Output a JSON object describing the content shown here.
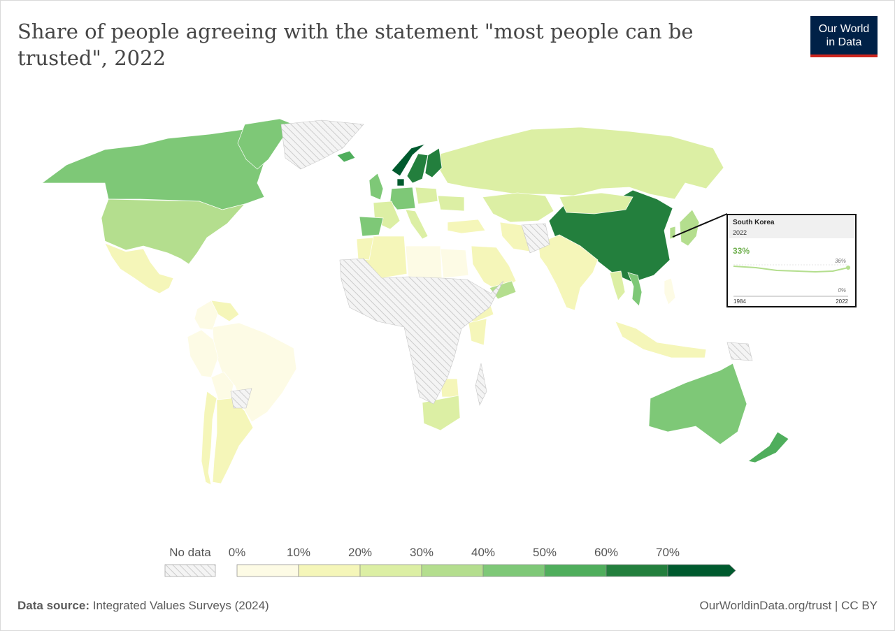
{
  "title": "Share of people agreeing with the statement \"most people can be trusted\", 2022",
  "logo": {
    "line1": "Our World",
    "line2": "in Data"
  },
  "legend": {
    "no_data_label": "No data",
    "ticks": [
      "0%",
      "10%",
      "20%",
      "30%",
      "40%",
      "50%",
      "60%",
      "70%"
    ],
    "colors": [
      "#fdfbe5",
      "#f5f6b9",
      "#dcefa4",
      "#b4de8e",
      "#7ec877",
      "#4fae5c",
      "#237f3d",
      "#005a2e"
    ],
    "no_data_color": "#dddddd"
  },
  "tooltip": {
    "country": "South Korea",
    "year": "2022",
    "value": "33%",
    "max_label": "36%",
    "min_label": "0%",
    "start_year": "1984",
    "end_year": "2022"
  },
  "footer": {
    "source_label": "Data source:",
    "source": "Integrated Values Surveys (2024)",
    "url": "OurWorldinData.org/trust | CC BY"
  },
  "map_data": [
    {
      "name": "Canada",
      "band": 4
    },
    {
      "name": "United States",
      "band": 3
    },
    {
      "name": "Mexico",
      "band": 1
    },
    {
      "name": "Greenland",
      "band": 4
    },
    {
      "name": "Brazil",
      "band": 0
    },
    {
      "name": "Argentina",
      "band": 1
    },
    {
      "name": "Peru",
      "band": 0
    },
    {
      "name": "Colombia",
      "band": 0
    },
    {
      "name": "Venezuela",
      "band": 1
    },
    {
      "name": "Bolivia",
      "band": 0
    },
    {
      "name": "Chile",
      "band": 1
    },
    {
      "name": "Russia",
      "band": 2
    },
    {
      "name": "China",
      "band": 6
    },
    {
      "name": "India",
      "band": 1
    },
    {
      "name": "Kazakhstan",
      "band": 2
    },
    {
      "name": "Mongolia",
      "band": 2
    },
    {
      "name": "Iran",
      "band": 1
    },
    {
      "name": "Saudi Arabia",
      "band": 1
    },
    {
      "name": "Japan",
      "band": 3
    },
    {
      "name": "South Korea",
      "band": 3
    },
    {
      "name": "Vietnam",
      "band": 4
    },
    {
      "name": "Thailand",
      "band": 2
    },
    {
      "name": "Indonesia",
      "band": 1
    },
    {
      "name": "Philippines",
      "band": 0
    },
    {
      "name": "Australia",
      "band": 4
    },
    {
      "name": "New Zealand",
      "band": 5
    },
    {
      "name": "Norway",
      "band": 7
    },
    {
      "name": "Sweden",
      "band": 6
    },
    {
      "name": "Finland",
      "band": 6
    },
    {
      "name": "Denmark",
      "band": 7
    },
    {
      "name": "Iceland",
      "band": 5
    },
    {
      "name": "United Kingdom",
      "band": 4
    },
    {
      "name": "Germany",
      "band": 4
    },
    {
      "name": "France",
      "band": 2
    },
    {
      "name": "Spain",
      "band": 4
    },
    {
      "name": "Italy",
      "band": 2
    },
    {
      "name": "Poland",
      "band": 2
    },
    {
      "name": "Ukraine",
      "band": 2
    },
    {
      "name": "Turkey",
      "band": 1
    },
    {
      "name": "Egypt",
      "band": 0
    },
    {
      "name": "Libya",
      "band": 0
    },
    {
      "name": "Algeria",
      "band": 1
    },
    {
      "name": "Morocco",
      "band": 1
    },
    {
      "name": "Nigeria",
      "band": 1
    },
    {
      "name": "Ethiopia",
      "band": 1
    },
    {
      "name": "Kenya",
      "band": 1
    },
    {
      "name": "Zimbabwe",
      "band": 1
    },
    {
      "name": "South Africa",
      "band": 2
    },
    {
      "name": "Yemen",
      "band": 3
    }
  ]
}
